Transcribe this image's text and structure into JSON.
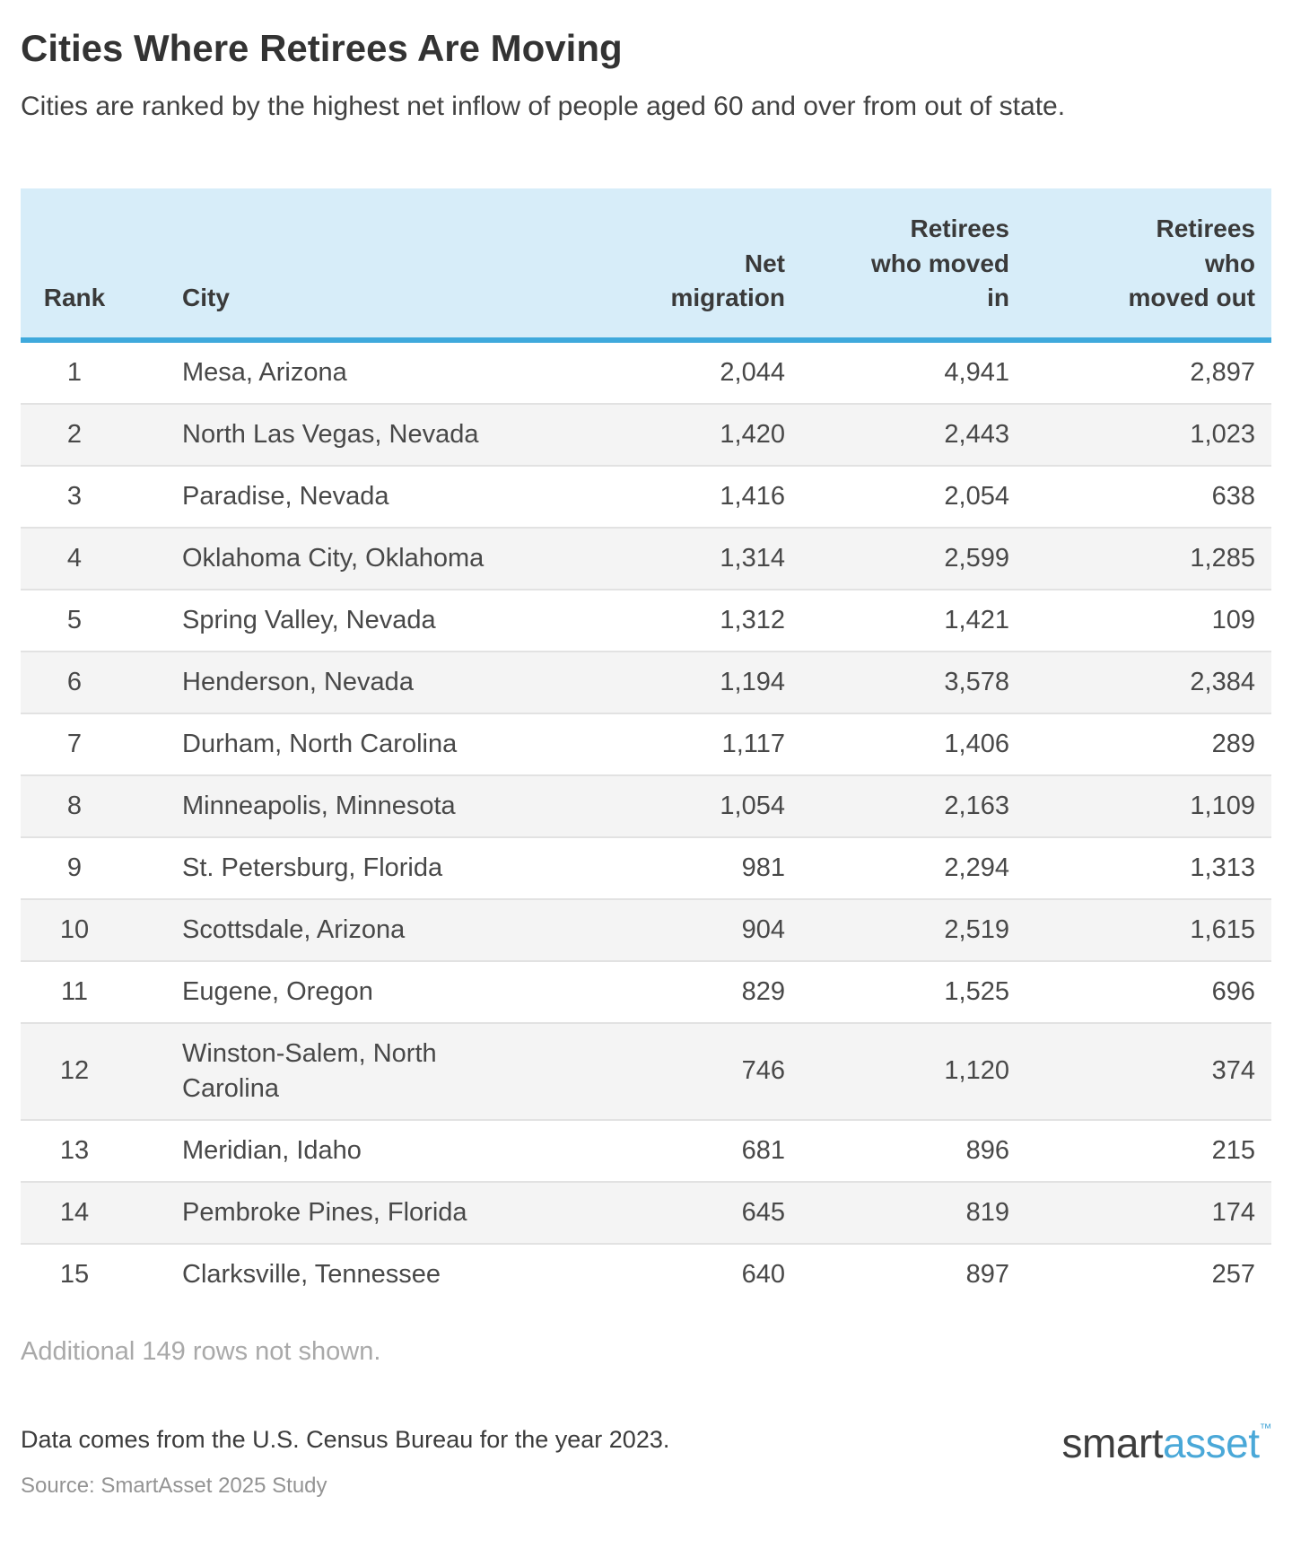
{
  "page": {
    "title": "Cities Where Retirees Are Moving",
    "subtitle": "Cities are ranked by the highest net inflow of people aged 60 and over from out of state."
  },
  "chart_data": {
    "type": "table",
    "title": "Cities Where Retirees Are Moving",
    "subtitle": "Cities are ranked by the highest net inflow of people aged 60 and over from out of state.",
    "columns": [
      {
        "key": "rank",
        "label": "Rank",
        "align": "center"
      },
      {
        "key": "city",
        "label": "City",
        "align": "left"
      },
      {
        "key": "net",
        "label": "Net\nmigration",
        "align": "right"
      },
      {
        "key": "in",
        "label": "Retirees\nwho moved\nin",
        "align": "right"
      },
      {
        "key": "out",
        "label": "Retirees\nwho\nmoved out",
        "align": "right"
      }
    ],
    "rows": [
      [
        "1",
        "Mesa, Arizona",
        "2,044",
        "4,941",
        "2,897"
      ],
      [
        "2",
        "North Las Vegas, Nevada",
        "1,420",
        "2,443",
        "1,023"
      ],
      [
        "3",
        "Paradise, Nevada",
        "1,416",
        "2,054",
        "638"
      ],
      [
        "4",
        "Oklahoma City, Oklahoma",
        "1,314",
        "2,599",
        "1,285"
      ],
      [
        "5",
        "Spring Valley, Nevada",
        "1,312",
        "1,421",
        "109"
      ],
      [
        "6",
        "Henderson, Nevada",
        "1,194",
        "3,578",
        "2,384"
      ],
      [
        "7",
        "Durham, North Carolina",
        "1,117",
        "1,406",
        "289"
      ],
      [
        "8",
        "Minneapolis, Minnesota",
        "1,054",
        "2,163",
        "1,109"
      ],
      [
        "9",
        "St. Petersburg, Florida",
        "981",
        "2,294",
        "1,313"
      ],
      [
        "10",
        "Scottsdale, Arizona",
        "904",
        "2,519",
        "1,615"
      ],
      [
        "11",
        "Eugene, Oregon",
        "829",
        "1,525",
        "696"
      ],
      [
        "12",
        "Winston-Salem, North Carolina",
        "746",
        "1,120",
        "374"
      ],
      [
        "13",
        "Meridian, Idaho",
        "681",
        "896",
        "215"
      ],
      [
        "14",
        "Pembroke Pines, Florida",
        "645",
        "819",
        "174"
      ],
      [
        "15",
        "Clarksville, Tennessee",
        "640",
        "897",
        "257"
      ]
    ],
    "additional_note": "Additional 149 rows not shown."
  },
  "footer": {
    "data_note": "Data comes from the U.S. Census Bureau for the year 2023.",
    "source_note": "Source: SmartAsset 2025 Study",
    "logo_part1": "smart",
    "logo_part2": "asset",
    "logo_trademark": "™"
  },
  "colors": {
    "header_bg": "#d7edf9",
    "header_border_blue": "#3fa9dc",
    "row_alt_bg": "#f4f4f4",
    "row_divider": "#e2e2e2",
    "text_dark": "#3b3b3b",
    "text_muted": "#a9a9a9",
    "source_gray": "#949494",
    "logo_blue": "#4aa8d8"
  }
}
